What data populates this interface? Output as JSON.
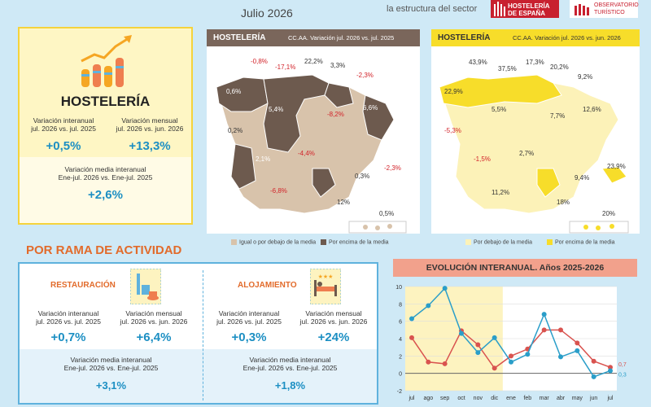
{
  "header": {
    "date": "Julio 2026",
    "subtitle": "la estructura del sector"
  },
  "logos": {
    "hosteleria_line1": "HOSTELERÍA",
    "hosteleria_line2": "DE ESPAÑA",
    "observatorio_line1": "OBSERVATORIO",
    "observatorio_line2": "TURÍSTICO"
  },
  "summary": {
    "title": "HOSTELERÍA",
    "interannual_label1": "Variación interanual",
    "interannual_label2": "jul. 2026 vs. jul. 2025",
    "interannual_value": "+0,5%",
    "monthly_label1": "Variación mensual",
    "monthly_label2": "jul. 2026 vs. jun. 2026",
    "monthly_value": "+13,3%",
    "avg_label1": "Variación media interanual",
    "avg_label2": "Ene-jul. 2026 vs. Ene-jul. 2025",
    "avg_value": "+2,6%"
  },
  "map1": {
    "title": "HOSTELERÍA",
    "subtitle": "CC.AA. Variación jul. 2026 vs. jul. 2025",
    "legend_below": "Igual o por debajo de la media",
    "legend_above": "Por encima de la media",
    "labels": [
      "-0,8%",
      "-17,1%",
      "22,2%",
      "3,3%",
      "-2,3%",
      "0,6%",
      "5,4%",
      "-8,2%",
      "6,6%",
      "0,2%",
      "-4,4%",
      "2,1%",
      "0,3%",
      "-2,3%",
      "-6,8%",
      "12%",
      "0,5%"
    ]
  },
  "map2": {
    "title": "HOSTELERÍA",
    "subtitle": "CC.AA. Variación jul. 2026 vs. jun. 2026",
    "legend_below": "Por debajo de la media",
    "legend_above": "Por encima de la media",
    "labels": [
      "43,9%",
      "37,5%",
      "17,3%",
      "20,2%",
      "22,9%",
      "9,2%",
      "5,5%",
      "12,6%",
      "7,7%",
      "-5,3%",
      "2,7%",
      "-1,5%",
      "9,4%",
      "23,9%",
      "11,2%",
      "18%",
      "20%"
    ]
  },
  "rama": {
    "section_title": "POR RAMA DE ACTIVIDAD",
    "restauracion": {
      "title": "RESTAURACIÓN",
      "interannual_label1": "Variación interanual",
      "interannual_label2": "jul. 2026 vs. jul. 2025",
      "interannual_value": "+0,7%",
      "monthly_label1": "Variación mensual",
      "monthly_label2": "jul. 2026 vs. jun. 2026",
      "monthly_value": "+6,4%",
      "avg_label1": "Variación media interanual",
      "avg_label2": "Ene-jul. 2026 vs. Ene-jul. 2025",
      "avg_value": "+3,1%"
    },
    "alojamiento": {
      "title": "ALOJAMIENTO",
      "interannual_label1": "Variación interanual",
      "interannual_label2": "jul. 2026 vs. jul. 2025",
      "interannual_value": "+0,3%",
      "monthly_label1": "Variación mensual",
      "monthly_label2": "jul. 2026 vs. jun. 2026",
      "monthly_value": "+24%",
      "avg_label1": "Variación media interanual",
      "avg_label2": "Ene-jul. 2026 vs. Ene-jul. 2025",
      "avg_value": "+1,8%"
    }
  },
  "colors": {
    "red_series": "#d9534f",
    "blue_series": "#2a9ec9",
    "highlight": "#fdf3c0",
    "map_above": "#6d5a4e",
    "map_below": "#d8c3ab",
    "map2_above": "#f7dd2a",
    "map2_below": "#fcf2b8"
  },
  "chart_data": {
    "type": "line",
    "title": "EVOLUCIÓN INTERANUAL. Años 2025-2026",
    "categories": [
      "jul",
      "ago",
      "sep",
      "oct",
      "nov",
      "dic",
      "ene",
      "feb",
      "mar",
      "abr",
      "may",
      "jun",
      "jul"
    ],
    "ylim": [
      -2,
      10
    ],
    "yticks": [
      -2,
      0,
      2,
      4,
      6,
      8,
      10
    ],
    "highlight_range": [
      "jul",
      "dic"
    ],
    "series": [
      {
        "name": "",
        "color": "#d9534f",
        "values": [
          4.1,
          1.3,
          1.1,
          4.9,
          3.3,
          0.6,
          2.0,
          2.8,
          5.0,
          5.0,
          3.5,
          1.4,
          0.7
        ]
      },
      {
        "name": "",
        "color": "#2a9ec9",
        "values": [
          6.3,
          7.8,
          9.8,
          4.6,
          2.4,
          4.1,
          1.3,
          2.2,
          6.8,
          1.9,
          2.6,
          -0.4,
          0.3
        ]
      }
    ],
    "end_labels": [
      "0,7",
      "0,3"
    ]
  }
}
